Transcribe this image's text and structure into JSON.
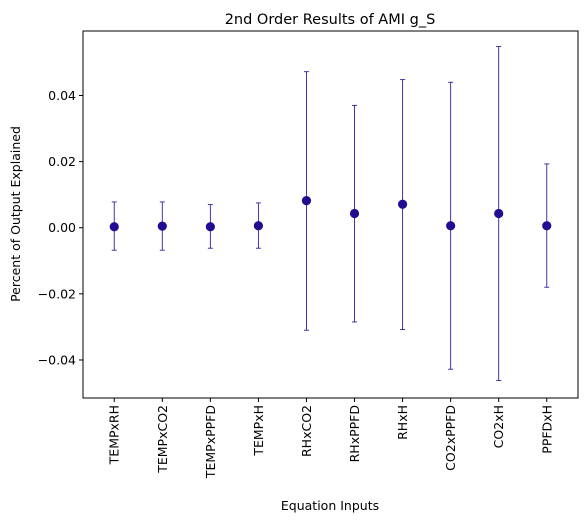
{
  "chart_data": {
    "type": "scatter",
    "title": "2nd Order Results of AMI g_S",
    "xlabel": "Equation Inputs",
    "ylabel": "Percent of Output Explained",
    "ylim": [
      -0.0515,
      0.0595
    ],
    "yticks": [
      -0.04,
      -0.02,
      0.0,
      0.02,
      0.04
    ],
    "ytick_labels": [
      "−0.04",
      "−0.02",
      "0.00",
      "0.02",
      "0.04"
    ],
    "categories": [
      "TEMPxRH",
      "TEMPxCO2",
      "TEMPxPPFD",
      "TEMPxH",
      "RHxCO2",
      "RHxPPFD",
      "RHxH",
      "CO2xPPFD",
      "CO2xH",
      "PPFDxH"
    ],
    "values": [
      0.0003,
      0.0005,
      0.0003,
      0.0006,
      0.0082,
      0.0043,
      0.0071,
      0.0006,
      0.0043,
      0.0006
    ],
    "error_low": [
      -0.0068,
      -0.0068,
      -0.0062,
      -0.0062,
      -0.031,
      -0.0285,
      -0.0308,
      -0.0428,
      -0.0462,
      -0.018
    ],
    "error_high": [
      0.0078,
      0.0078,
      0.007,
      0.0075,
      0.0472,
      0.037,
      0.0448,
      0.044,
      0.0548,
      0.0193
    ],
    "grid": false,
    "colors": {
      "marker": "#230c92",
      "errorbar": "#3a1ba0",
      "axis": "#000000"
    }
  }
}
